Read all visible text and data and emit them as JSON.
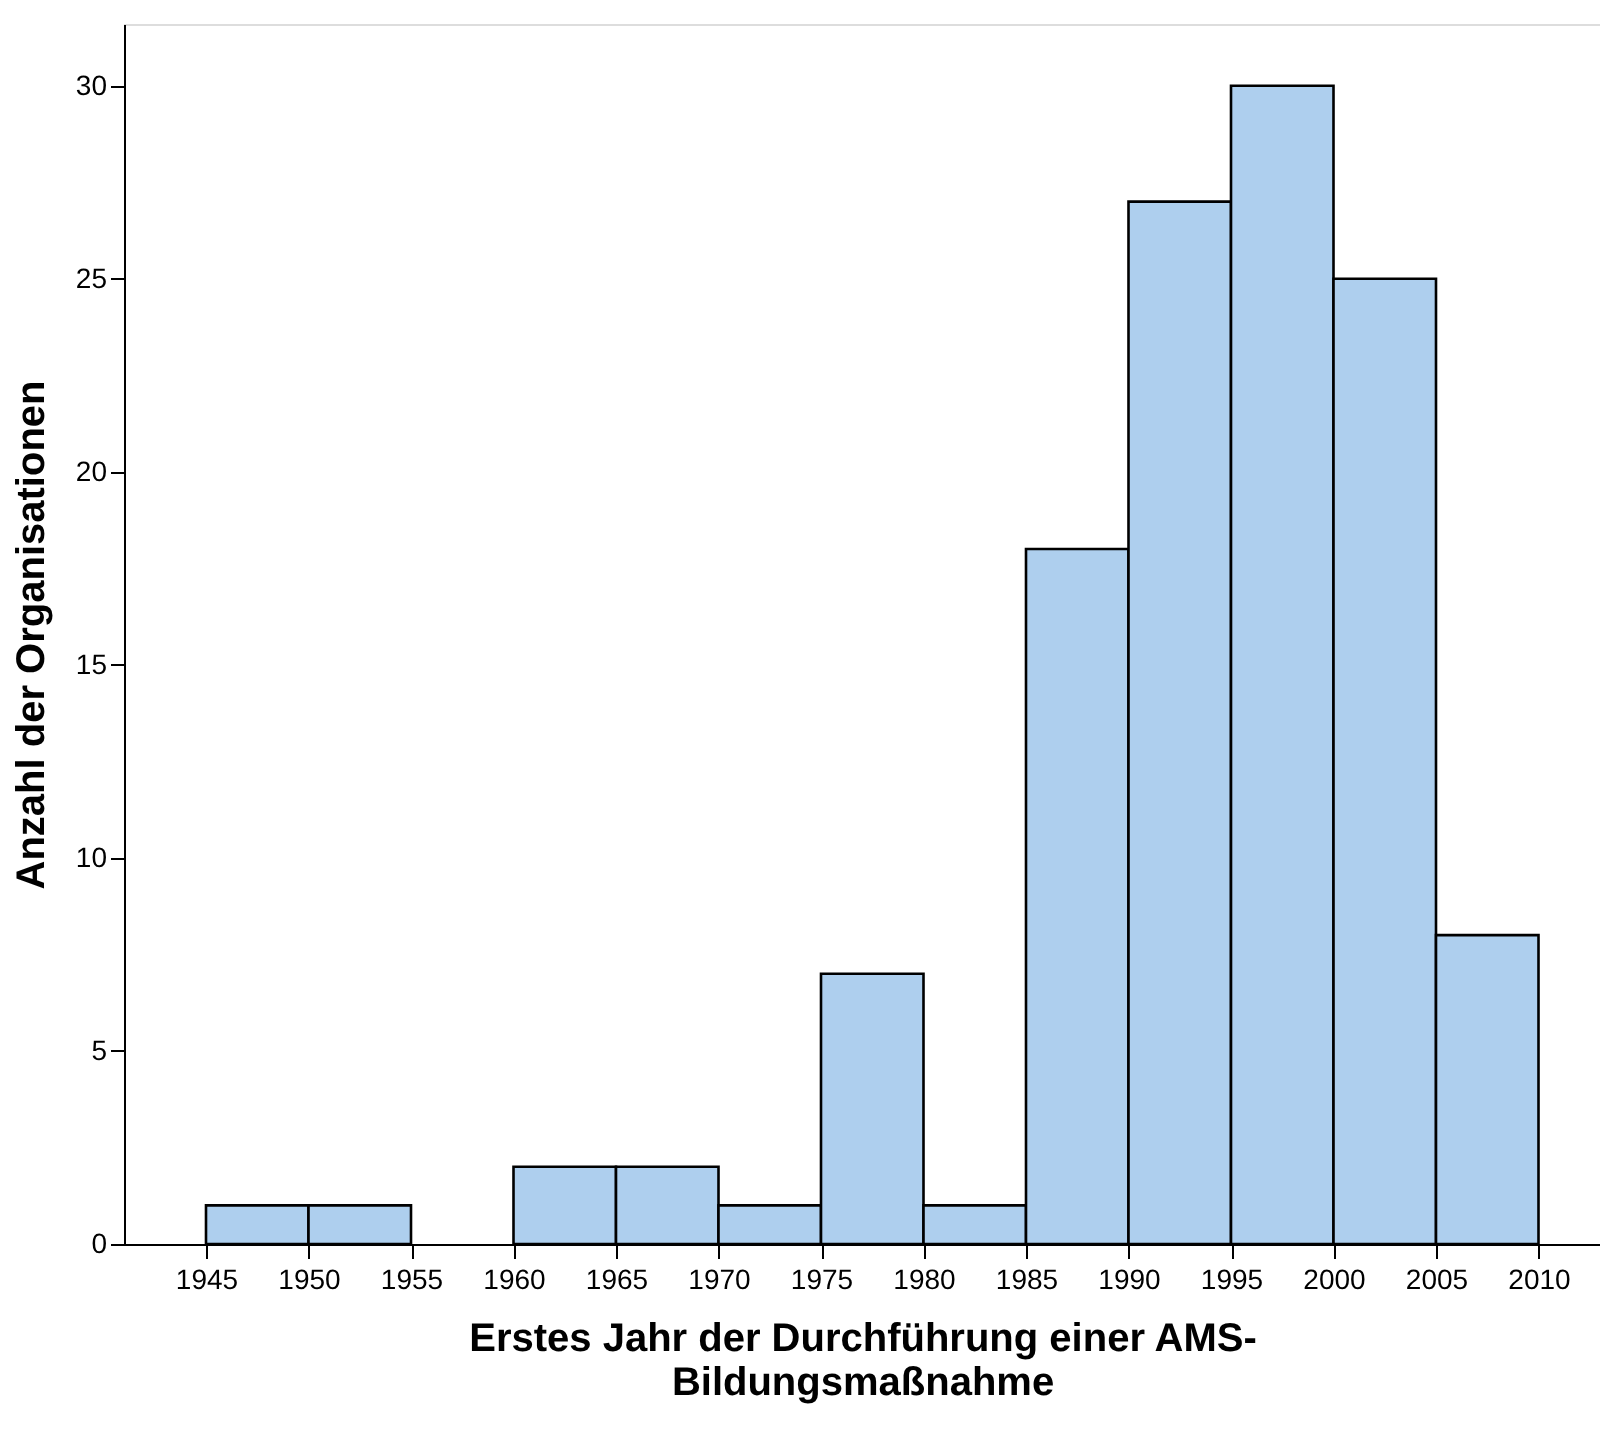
{
  "chart_data": {
    "type": "histogram",
    "xlabel": "Erstes Jahr der Durchführung einer AMS-Bildungsmaßnahme",
    "ylabel": "Anzahl der Organisationen",
    "bins": [
      1945,
      1950,
      1955,
      1960,
      1965,
      1970,
      1975,
      1980,
      1985,
      1990,
      1995,
      2000,
      2005,
      2010
    ],
    "values": [
      1,
      1,
      0,
      2,
      2,
      1,
      7,
      1,
      18,
      27,
      30,
      25,
      8
    ],
    "color": "#aecfee",
    "xlim": [
      1941,
      2013
    ],
    "xticks": [
      1945,
      1950,
      1955,
      1960,
      1965,
      1970,
      1975,
      1980,
      1985,
      1990,
      1995,
      2000,
      2005,
      2010
    ],
    "ylim": [
      0,
      31.6
    ],
    "yticks": [
      0,
      5,
      10,
      15,
      20,
      25,
      30
    ],
    "grid": false
  }
}
